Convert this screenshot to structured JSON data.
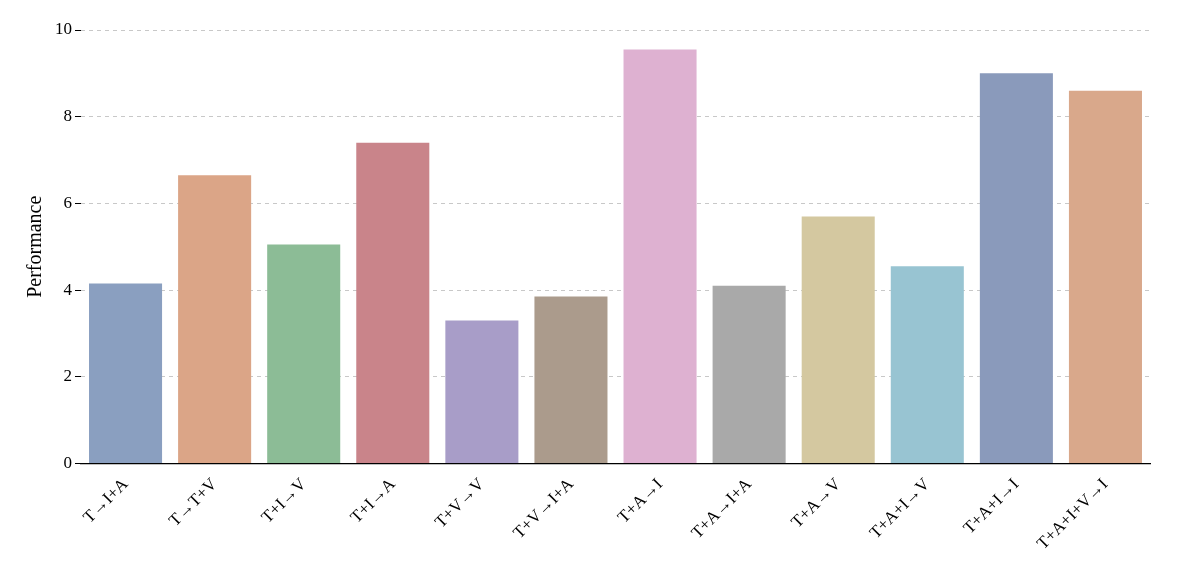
{
  "chart_data": {
    "type": "bar",
    "y_label": "Performance",
    "categories": [
      "T→I+A",
      "T→T+V",
      "T+I→V",
      "T+I→A",
      "T+V→V",
      "T+V→I+A",
      "T+A→I",
      "T+A→I+A",
      "T+A→V",
      "T+A+I→V",
      "T+A+I→I",
      "T+A+I+V→I"
    ],
    "values": [
      4.15,
      6.65,
      5.05,
      7.4,
      3.3,
      3.85,
      9.55,
      4.1,
      5.7,
      4.55,
      9.0,
      8.6
    ],
    "colors": [
      "#8a9fc0",
      "#dba587",
      "#8cbc96",
      "#c9848a",
      "#a89dc8",
      "#ab9b8c",
      "#deb1d1",
      "#a9a9a9",
      "#d4c8a0",
      "#98c4d2",
      "#8a9abb",
      "#d9a88b"
    ],
    "ylim": [
      0,
      10
    ],
    "yticks": [
      0,
      2,
      4,
      6,
      8,
      10
    ],
    "grid": true
  }
}
